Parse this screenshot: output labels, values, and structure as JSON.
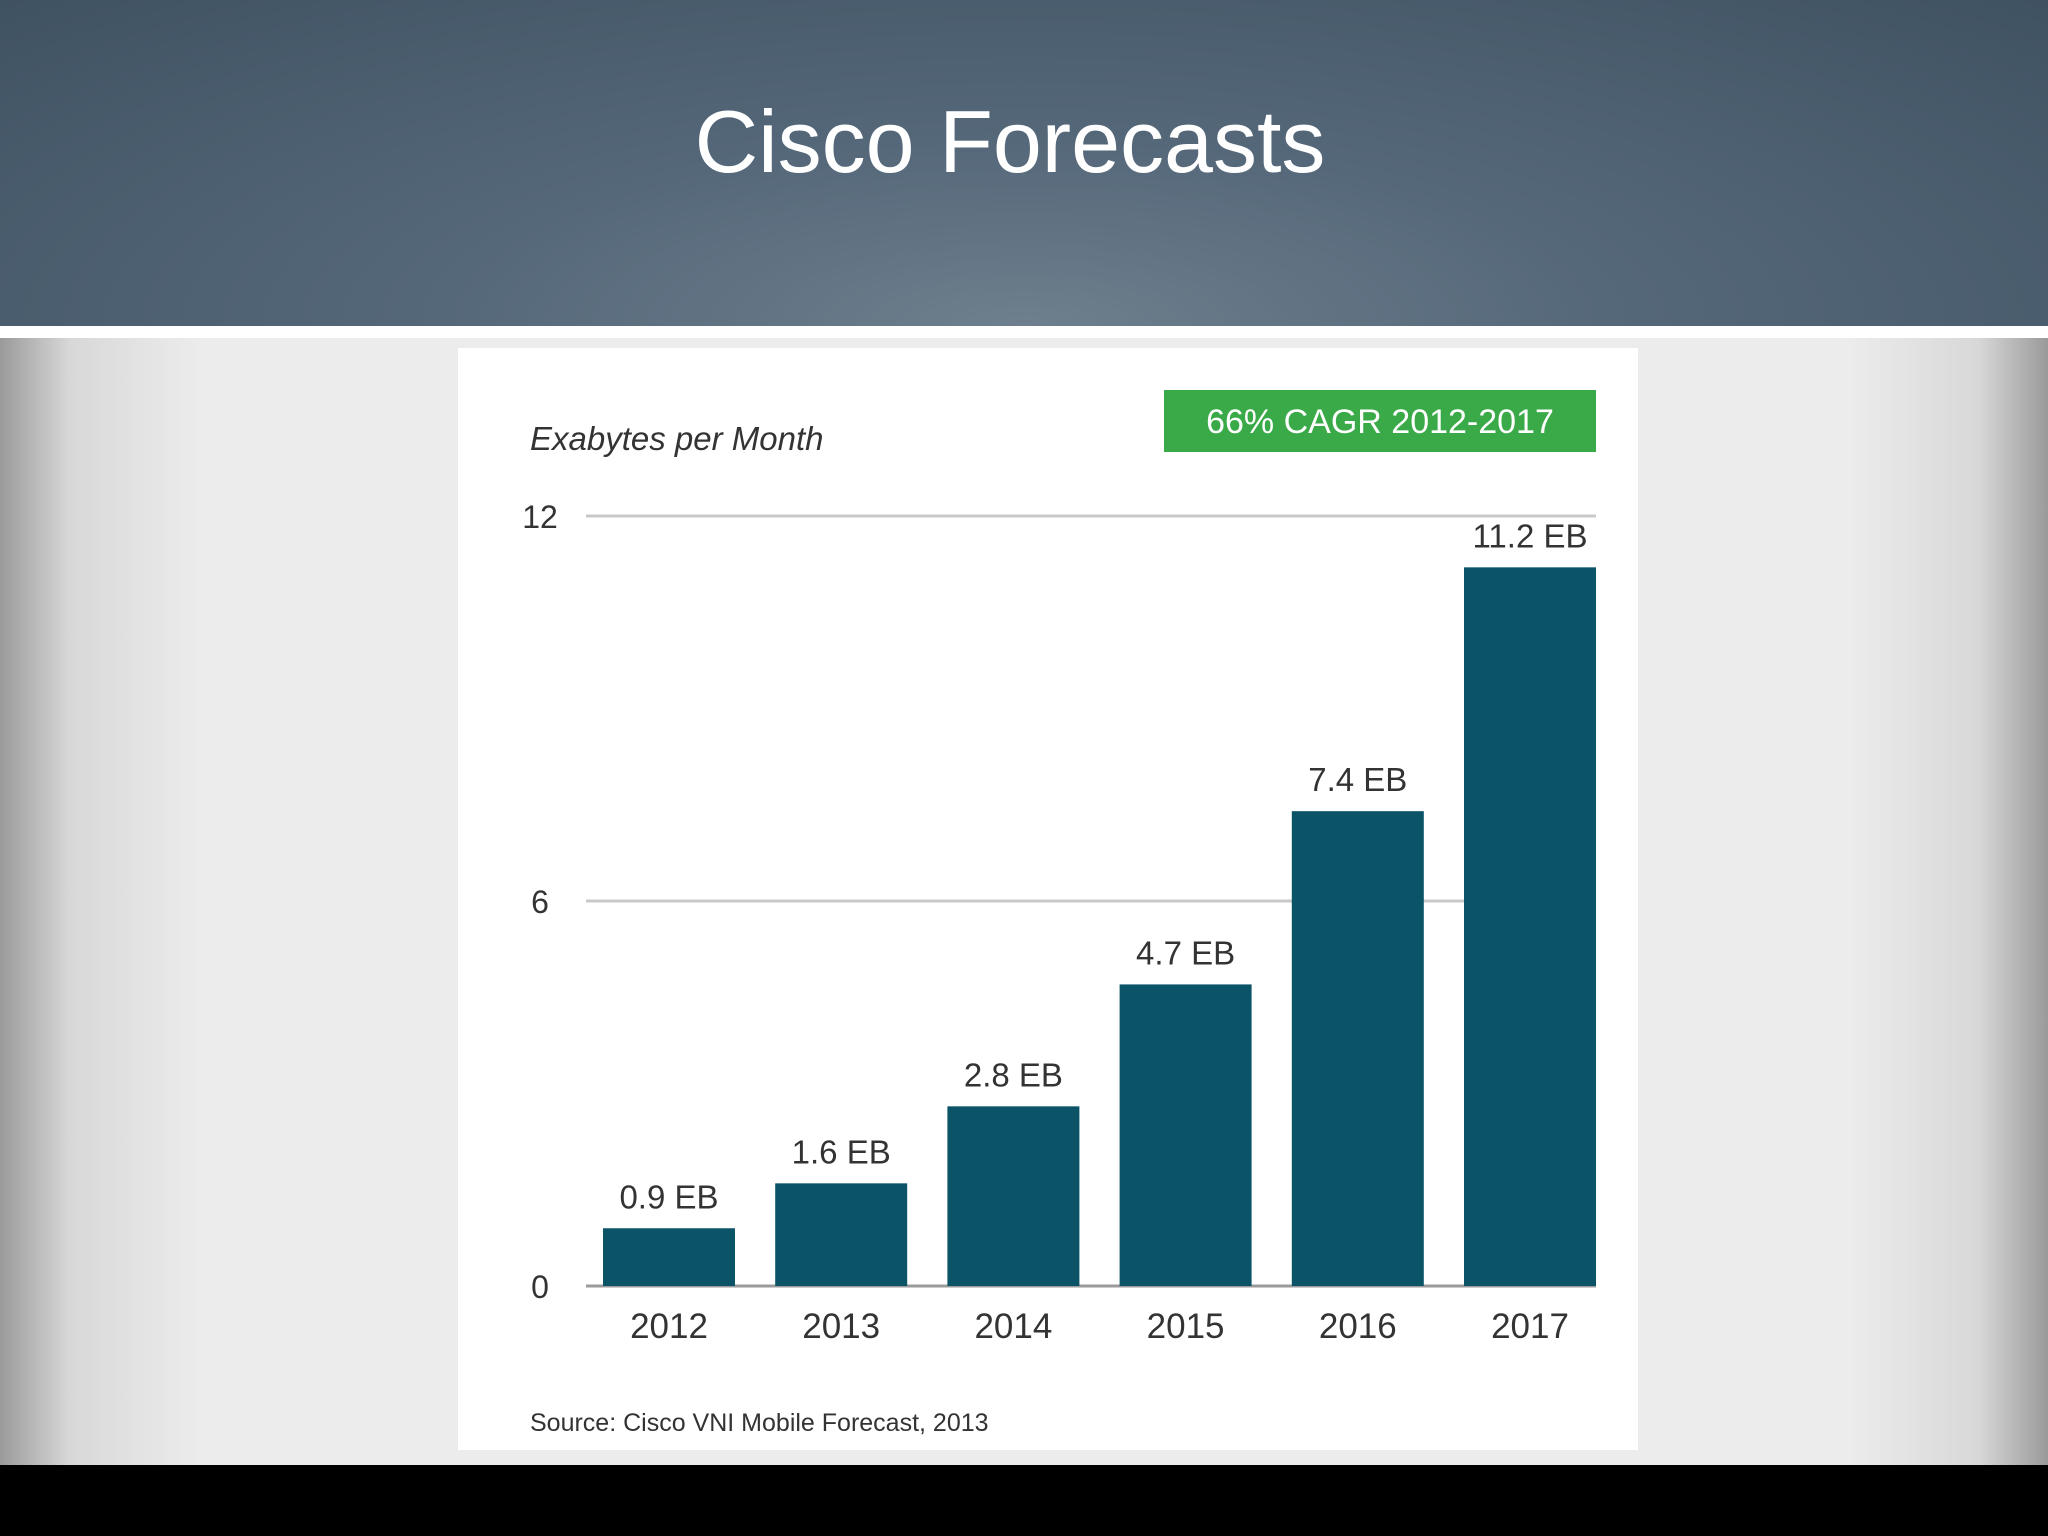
{
  "slide": {
    "title": "Cisco Forecasts"
  },
  "chart_data": {
    "type": "bar",
    "title": "",
    "ylabel": "Exabytes per Month",
    "xlabel": "",
    "categories": [
      "2012",
      "2013",
      "2014",
      "2015",
      "2016",
      "2017"
    ],
    "values": [
      0.9,
      1.6,
      2.8,
      4.7,
      7.4,
      11.2
    ],
    "data_labels": [
      "0.9 EB",
      "1.6 EB",
      "2.8 EB",
      "4.7 EB",
      "7.4 EB",
      "11.2 EB"
    ],
    "ylim": [
      0,
      12
    ],
    "yticks": [
      0,
      6,
      12
    ],
    "ytick_labels": [
      "0",
      "6",
      "12"
    ],
    "gridlines": true,
    "badge": "66% CAGR 2012-2017",
    "source": "Source: Cisco VNI Mobile Forecast, 2013",
    "colors": {
      "bar": "#0b5468",
      "badge_bg": "#3aaa48",
      "badge_text": "#ffffff",
      "grid": "#c8c8c8",
      "text": "#333333"
    }
  }
}
